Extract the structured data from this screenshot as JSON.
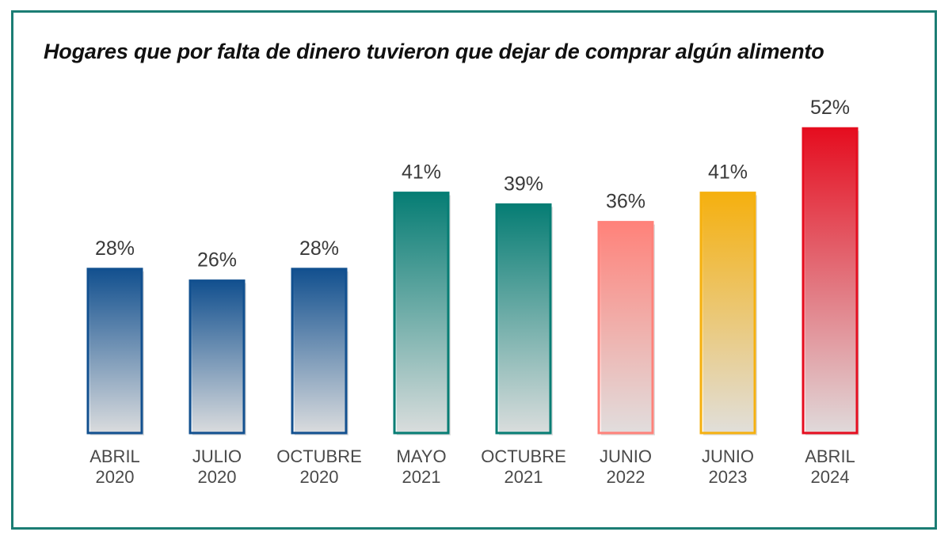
{
  "chart_data": {
    "type": "bar",
    "title": "Hogares que por falta de dinero tuvieron que dejar de comprar algún alimento",
    "xlabel": "",
    "ylabel": "",
    "ylim": [
      0,
      60
    ],
    "grid": false,
    "unit": "%",
    "categories": [
      [
        "ABRIL",
        "2020"
      ],
      [
        "JULIO",
        "2020"
      ],
      [
        "OCTUBRE",
        "2020"
      ],
      [
        "MAYO",
        "2021"
      ],
      [
        "OCTUBRE",
        "2021"
      ],
      [
        "JUNIO",
        "2022"
      ],
      [
        "JUNIO",
        "2023"
      ],
      [
        "ABRIL",
        "2024"
      ]
    ],
    "values": [
      28,
      26,
      28,
      41,
      39,
      36,
      41,
      52
    ],
    "labels": [
      "28%",
      "26%",
      "28%",
      "41%",
      "39%",
      "36%",
      "41%",
      "52%"
    ],
    "colors": [
      "#12508f",
      "#12508f",
      "#12508f",
      "#067d74",
      "#067d74",
      "#ff827a",
      "#f5b00f",
      "#e50d1f"
    ]
  },
  "colors": {
    "frame": "#1b7d74"
  }
}
